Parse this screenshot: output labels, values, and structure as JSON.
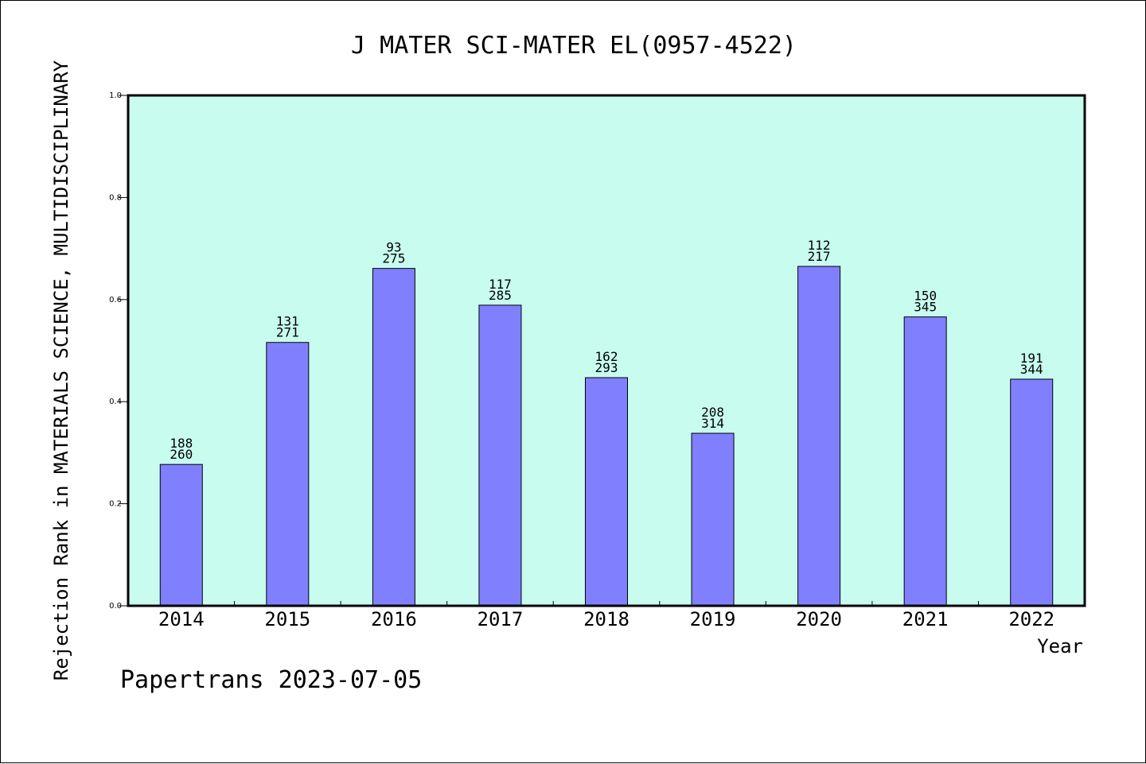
{
  "chart_data": {
    "type": "bar",
    "title": "J MATER SCI-MATER EL(0957-4522)",
    "xlabel": "Year",
    "ylabel": "Rejection Rank in MATERIALS SCIENCE, MULTIDISCIPLINARY",
    "ylim": [
      0,
      1.0
    ],
    "yticks": [
      "0.0",
      "0.2",
      "0.4",
      "0.6",
      "0.8",
      "1.0"
    ],
    "categories": [
      "2014",
      "2015",
      "2016",
      "2017",
      "2018",
      "2019",
      "2020",
      "2021",
      "2022"
    ],
    "values": [
      0.277,
      0.516,
      0.661,
      0.589,
      0.447,
      0.338,
      0.665,
      0.566,
      0.444
    ],
    "labels_top": [
      "188",
      "131",
      "93",
      "117",
      "162",
      "208",
      "112",
      "150",
      "191"
    ],
    "labels_bottom": [
      "260",
      "271",
      "275",
      "285",
      "293",
      "314",
      "217",
      "345",
      "344"
    ],
    "grid": false,
    "colors": {
      "plot_background": "#c8fcef",
      "bar_fill": "#8080ff",
      "bar_stroke": "#000000",
      "axis": "#000000"
    }
  },
  "footer": {
    "credit": "Papertrans 2023-07-05"
  }
}
